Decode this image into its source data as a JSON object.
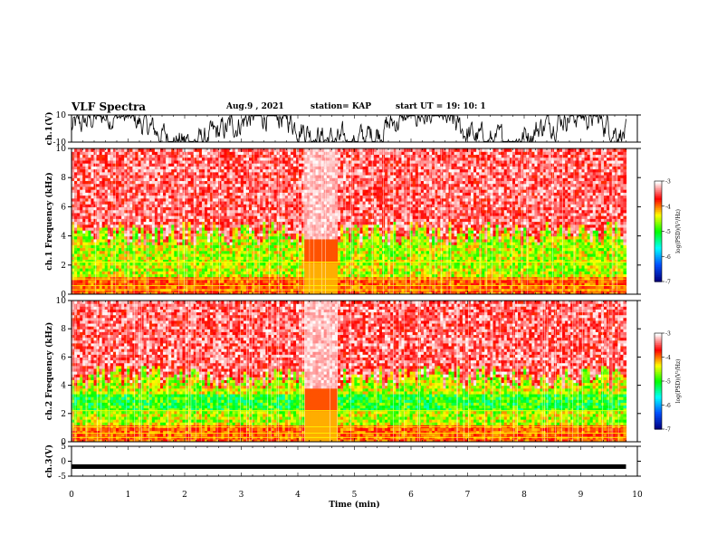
{
  "header": {
    "title": "VLF Spectra",
    "date": "Aug.9 , 2021",
    "station": "station= KAP",
    "start_ut": "start UT = 19: 10: 1"
  },
  "chart_data": [
    {
      "type": "line",
      "name": "ch1-waveform",
      "ylabel": "ch.1(V)",
      "ylim": [
        -10,
        10
      ],
      "yticks": [
        10,
        -10
      ],
      "xlim": [
        0,
        10
      ],
      "description_level": "noisy waveform spanning roughly -9 to 9 V throughout"
    },
    {
      "type": "heatmap",
      "name": "ch1-spectrogram",
      "ylabel": "ch.1 Frequency (kHz)",
      "ylim": [
        0,
        10
      ],
      "yticks": [
        0,
        2,
        4,
        6,
        8,
        10
      ],
      "xlim": [
        0,
        10
      ],
      "colorbar": {
        "label": "log(PSD)(V²/Hz)",
        "range": [
          -7,
          -3
        ],
        "ticks": [
          "-3",
          "-4",
          "-5",
          "-6",
          "-7"
        ],
        "colors": [
          "#000080",
          "#0050ff",
          "#00ffff",
          "#00ff00",
          "#ffff00",
          "#ff0000",
          "#ffffff"
        ]
      },
      "data_end_min": 9.8,
      "gap_interval_min": [
        4.1,
        4.7
      ]
    },
    {
      "type": "heatmap",
      "name": "ch2-spectrogram",
      "ylabel": "ch.2 Frequency (kHz)",
      "ylim": [
        0,
        10
      ],
      "yticks": [
        0,
        2,
        4,
        6,
        8,
        10
      ],
      "xlim": [
        0,
        10
      ],
      "colorbar": {
        "label": "log(PSD)(V²/Hz)",
        "range": [
          -7,
          -3
        ],
        "ticks": [
          "-3",
          "-4",
          "-5",
          "-6",
          "-7"
        ],
        "colors": [
          "#000080",
          "#0050ff",
          "#00ffff",
          "#00ff00",
          "#ffff00",
          "#ff0000",
          "#ffffff"
        ]
      },
      "data_end_min": 9.8,
      "gap_interval_min": [
        4.1,
        4.7
      ]
    },
    {
      "type": "line",
      "name": "ch3-waveform",
      "ylabel": "ch.3(V)",
      "ylim": [
        -5,
        5
      ],
      "yticks": [
        5,
        0,
        -5
      ],
      "xlim": [
        0,
        10
      ],
      "level": -1.8
    }
  ],
  "xaxis": {
    "label": "Time (min)",
    "ticks": [
      "0",
      "1",
      "2",
      "3",
      "4",
      "5",
      "6",
      "7",
      "8",
      "9",
      "10"
    ]
  }
}
